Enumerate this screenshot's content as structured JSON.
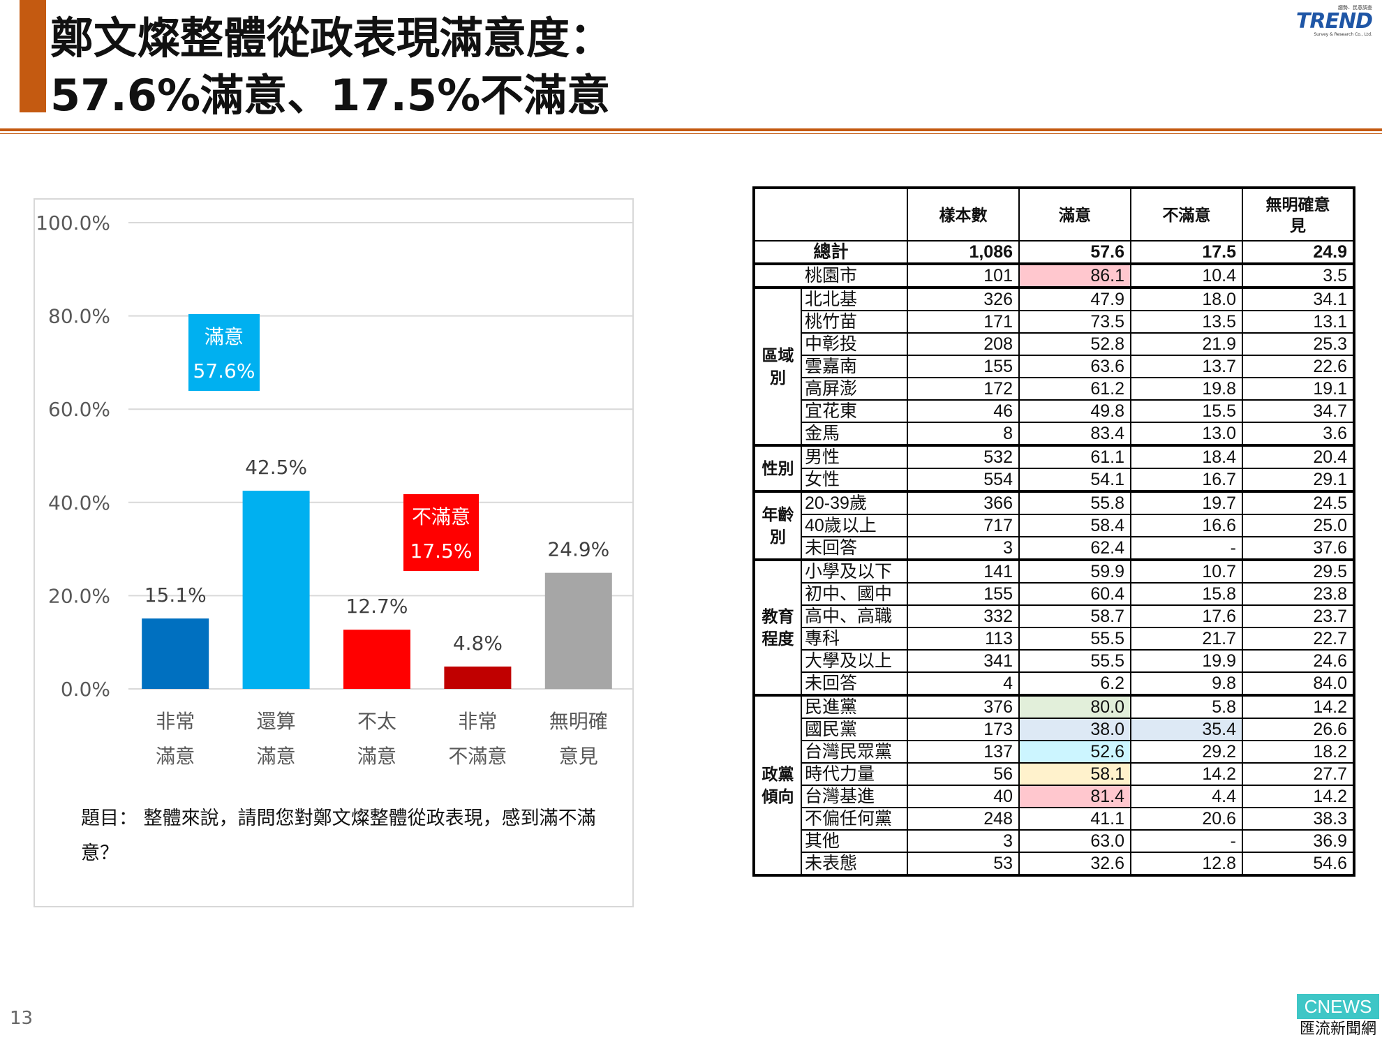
{
  "header": {
    "title_line1": "鄭文燦整體從政表現滿意度：",
    "title_line2": "57.6%滿意、17.5%不滿意",
    "logo_sup": "趨勢．民意調查",
    "logo_main": "TREND",
    "logo_sub": "Survey & Research Co., Ltd."
  },
  "chart_data": {
    "type": "bar",
    "title": "",
    "xlabel": "",
    "ylabel": "",
    "ylim": [
      0,
      100
    ],
    "yticks": [
      "100.0%",
      "80.0%",
      "60.0%",
      "40.0%",
      "20.0%",
      "0.0%"
    ],
    "grid": true,
    "categories": [
      {
        "line1": "非常",
        "line2": "滿意"
      },
      {
        "line1": "還算",
        "line2": "滿意"
      },
      {
        "line1": "不太",
        "line2": "滿意"
      },
      {
        "line1": "非常",
        "line2": "不滿意"
      },
      {
        "line1": "無明確",
        "line2": "意見"
      }
    ],
    "values": [
      15.1,
      42.5,
      12.7,
      4.8,
      24.9
    ],
    "value_labels": [
      "15.1%",
      "42.5%",
      "12.7%",
      "4.8%",
      "24.9%"
    ],
    "colors": [
      "#0070c0",
      "#00b0f0",
      "#ff0000",
      "#c00000",
      "#a6a6a6"
    ],
    "annotations": [
      {
        "line1": "滿意",
        "line2": "57.6%",
        "color": "#00b0f0"
      },
      {
        "line1": "不滿意",
        "line2": "17.5%",
        "color": "#ff0000"
      }
    ]
  },
  "question": {
    "text": "題目： 整體來說，請問您對鄭文燦整體從政表現，感到滿不滿意？"
  },
  "table": {
    "headers": [
      "",
      "樣本數",
      "滿意",
      "不滿意",
      "無明確意見"
    ],
    "total": {
      "label": "總計",
      "values": [
        "1,086",
        "57.6",
        "17.5",
        "24.9"
      ]
    },
    "city": {
      "label": "桃園市",
      "values": [
        "101",
        "86.1",
        "10.4",
        "3.5"
      ],
      "highlight": "#ffc7ce"
    },
    "groups": [
      {
        "name": "區域別",
        "rows": [
          {
            "label": "北北基",
            "values": [
              "326",
              "47.9",
              "18.0",
              "34.1"
            ]
          },
          {
            "label": "桃竹苗",
            "values": [
              "171",
              "73.5",
              "13.5",
              "13.1"
            ]
          },
          {
            "label": "中彰投",
            "values": [
              "208",
              "52.8",
              "21.9",
              "25.3"
            ]
          },
          {
            "label": "雲嘉南",
            "values": [
              "155",
              "63.6",
              "13.7",
              "22.6"
            ]
          },
          {
            "label": "高屏澎",
            "values": [
              "172",
              "61.2",
              "19.8",
              "19.1"
            ]
          },
          {
            "label": "宜花東",
            "values": [
              "46",
              "49.8",
              "15.5",
              "34.7"
            ]
          },
          {
            "label": "金馬",
            "values": [
              "8",
              "83.4",
              "13.0",
              "3.6"
            ]
          }
        ]
      },
      {
        "name": "性別",
        "rows": [
          {
            "label": "男性",
            "values": [
              "532",
              "61.1",
              "18.4",
              "20.4"
            ]
          },
          {
            "label": "女性",
            "values": [
              "554",
              "54.1",
              "16.7",
              "29.1"
            ]
          }
        ]
      },
      {
        "name": "年齡別",
        "rows": [
          {
            "label": "20-39歲",
            "values": [
              "366",
              "55.8",
              "19.7",
              "24.5"
            ]
          },
          {
            "label": "40歲以上",
            "values": [
              "717",
              "58.4",
              "16.6",
              "25.0"
            ]
          },
          {
            "label": "未回答",
            "values": [
              "3",
              "62.4",
              "-",
              "37.6"
            ]
          }
        ]
      },
      {
        "name": "教育程度",
        "rows": [
          {
            "label": "小學及以下",
            "values": [
              "141",
              "59.9",
              "10.7",
              "29.5"
            ]
          },
          {
            "label": "初中、國中",
            "values": [
              "155",
              "60.4",
              "15.8",
              "23.8"
            ]
          },
          {
            "label": "高中、高職",
            "values": [
              "332",
              "58.7",
              "17.6",
              "23.7"
            ]
          },
          {
            "label": "專科",
            "values": [
              "113",
              "55.5",
              "21.7",
              "22.7"
            ]
          },
          {
            "label": "大學及以上",
            "values": [
              "341",
              "55.5",
              "19.9",
              "24.6"
            ]
          },
          {
            "label": "未回答",
            "values": [
              "4",
              "6.2",
              "9.8",
              "84.0"
            ]
          }
        ]
      },
      {
        "name": "政黨傾向",
        "rows": [
          {
            "label": "民進黨",
            "values": [
              "376",
              "80.0",
              "5.8",
              "14.2"
            ],
            "hl_sat": "#e2efda"
          },
          {
            "label": "國民黨",
            "values": [
              "173",
              "38.0",
              "35.4",
              "26.6"
            ],
            "hl_sat": "#dde9f5",
            "hl_dis": "#dde9f5"
          },
          {
            "label": "台灣民眾黨",
            "values": [
              "137",
              "52.6",
              "29.2",
              "18.2"
            ],
            "hl_sat": "#ccf5ff"
          },
          {
            "label": "時代力量",
            "values": [
              "56",
              "58.1",
              "14.2",
              "27.7"
            ],
            "hl_sat": "#fff2cc"
          },
          {
            "label": "台灣基進",
            "values": [
              "40",
              "81.4",
              "4.4",
              "14.2"
            ],
            "hl_sat": "#ffc7ce"
          },
          {
            "label": "不偏任何黨",
            "values": [
              "248",
              "41.1",
              "20.6",
              "38.3"
            ]
          },
          {
            "label": "其他",
            "values": [
              "3",
              "63.0",
              "-",
              "36.9"
            ]
          },
          {
            "label": "未表態",
            "values": [
              "53",
              "32.6",
              "12.8",
              "54.6"
            ]
          }
        ]
      }
    ]
  },
  "footer": {
    "page_number": "13",
    "brand_top": "CNEWS",
    "brand_bottom": "匯流新聞網"
  }
}
